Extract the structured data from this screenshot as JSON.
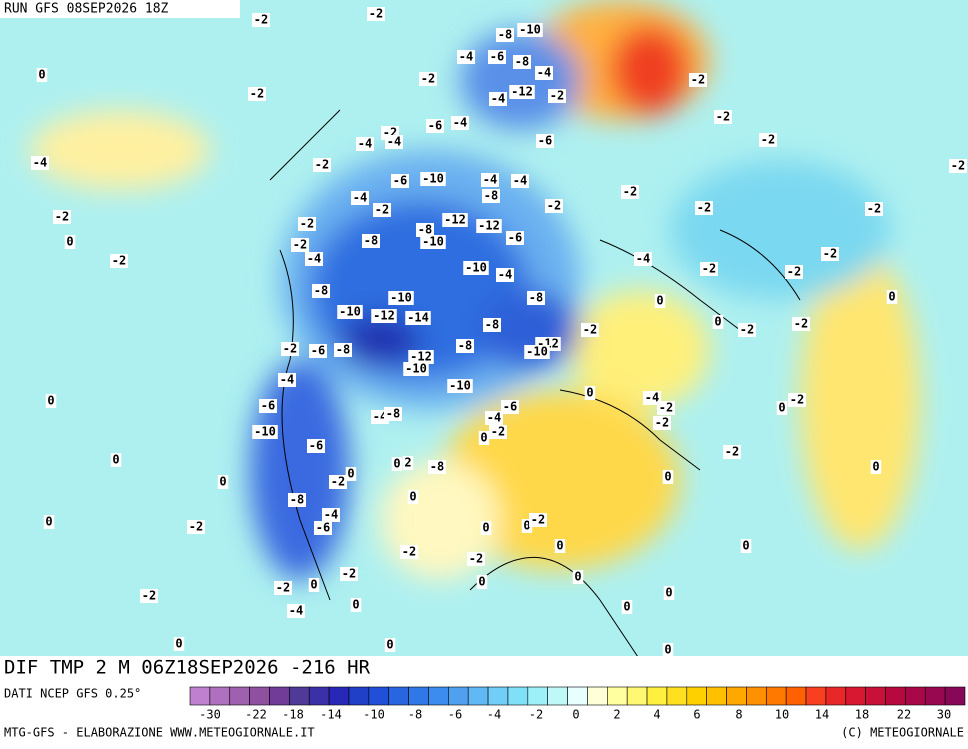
{
  "header": {
    "title": "RUN GFS 08SEP2026 18Z"
  },
  "map": {
    "labels": [
      "-2",
      "-2",
      "0",
      "-2",
      "-4",
      "-8",
      "-10",
      "-4",
      "-6",
      "-8",
      "-4",
      "-2",
      "-4",
      "-12",
      "-2",
      "-2",
      "-2",
      "-6",
      "-4",
      "-2",
      "-4",
      "-4",
      "-6",
      "-2",
      "-2",
      "-2",
      "-6",
      "-10",
      "-4",
      "-4",
      "-4",
      "-8",
      "-2",
      "-2",
      "-2",
      "-2",
      "-2",
      "-2",
      "0",
      "-2",
      "-8",
      "-12",
      "-12",
      "-10",
      "-8",
      "-6",
      "-2",
      "-4",
      "-2",
      "-10",
      "-4",
      "-4",
      "-2",
      "-2",
      "-2",
      "-8",
      "-10",
      "-8",
      "0",
      "0",
      "-10",
      "-12",
      "-14",
      "-8",
      "-2",
      "0",
      "-2",
      "-2",
      "-12",
      "-10",
      "-2",
      "-6",
      "-8",
      "-8",
      "-12",
      "-10",
      "-4",
      "-10",
      "-4",
      "0",
      "0",
      "-6",
      "-4",
      "-8",
      "-6",
      "-4",
      "-2",
      "0",
      "-2",
      "-10",
      "-2",
      "0",
      "-2",
      "-6",
      "0",
      "0",
      "2",
      "-8",
      "-2",
      "0",
      "0",
      "-2",
      "0",
      "0",
      "0",
      "-8",
      "-4",
      "-6",
      "0",
      "-2",
      "0",
      "0",
      "-2",
      "0",
      "0",
      "-2",
      "-2",
      "-2",
      "0",
      "0",
      "0",
      "-2",
      "-2",
      "0",
      "-4",
      "0",
      "0",
      "0",
      "0",
      "0"
    ]
  },
  "footer": {
    "run": "DIF TMP 2 M 06Z18SEP2026 -216 HR",
    "source": "DATI NCEP GFS 0.25°",
    "credit": "MTG-GFS - ELABORAZIONE WWW.METEOGIORNALE.IT",
    "copyright": "(C) METEOGIORNALE"
  },
  "colorbar": {
    "ticks": [
      "-30",
      "-22",
      "-18",
      "-14",
      "-10",
      "-8",
      "-6",
      "-4",
      "-2",
      "0",
      "2",
      "4",
      "6",
      "8",
      "10",
      "14",
      "18",
      "22",
      "30"
    ]
  }
}
